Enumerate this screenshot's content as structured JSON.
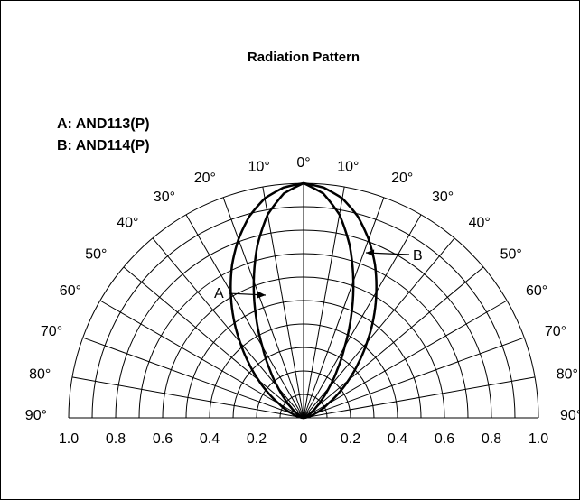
{
  "chart_data": {
    "type": "polar",
    "title": "Radiation Pattern",
    "legend": [
      "A: AND113(P)",
      "B: AND114(P)"
    ],
    "angle_labels_left": [
      "90°",
      "80°",
      "70°",
      "60°",
      "50°",
      "40°",
      "30°",
      "20°",
      "10°"
    ],
    "angle_labels_top": "0°",
    "angle_labels_right": [
      "10°",
      "20°",
      "30°",
      "40°",
      "50°",
      "60°",
      "70°",
      "80°",
      "90°"
    ],
    "radial_tick_labels": [
      "1.0",
      "0.8",
      "0.6",
      "0.4",
      "0.2",
      "0",
      "0.2",
      "0.4",
      "0.6",
      "0.8",
      "1.0"
    ],
    "radial_range": [
      0,
      1.0
    ],
    "angle_range_deg": [
      -90,
      90
    ],
    "grid": true,
    "series": [
      {
        "name": "A",
        "angle_deg": [
          0,
          5,
          10,
          15,
          20,
          25,
          30,
          35,
          40,
          45,
          50,
          55,
          60,
          70,
          80,
          90
        ],
        "relative_intensity": [
          1.0,
          0.985,
          0.95,
          0.89,
          0.81,
          0.72,
          0.62,
          0.52,
          0.42,
          0.33,
          0.25,
          0.18,
          0.12,
          0.05,
          0.015,
          0.0
        ]
      },
      {
        "name": "B",
        "angle_deg": [
          0,
          5,
          10,
          15,
          20,
          25,
          30,
          35,
          40,
          45,
          50,
          55,
          60,
          70,
          80,
          90
        ],
        "relative_intensity": [
          1.0,
          0.96,
          0.88,
          0.76,
          0.62,
          0.48,
          0.35,
          0.25,
          0.17,
          0.11,
          0.07,
          0.045,
          0.025,
          0.01,
          0.003,
          0.0
        ]
      }
    ],
    "annotations": [
      "A",
      "B"
    ]
  }
}
